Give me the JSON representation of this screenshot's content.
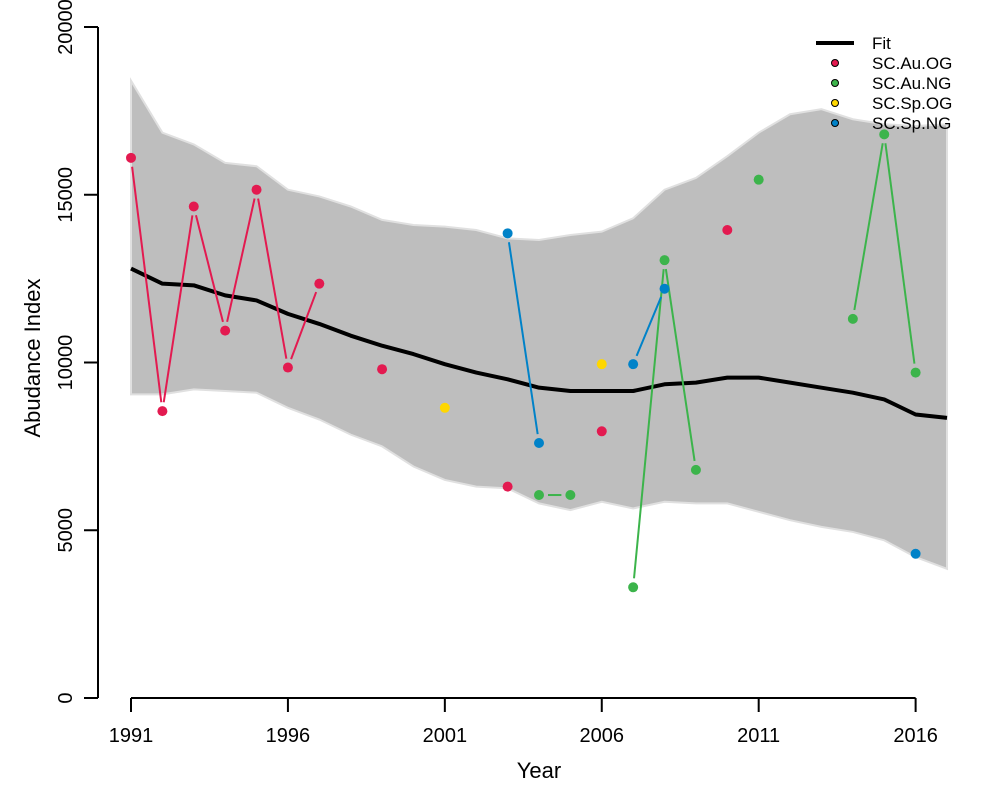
{
  "chart_data": {
    "type": "line",
    "title": "",
    "xlabel": "Year",
    "ylabel": "Abudance Index",
    "xlim": [
      1991,
      2017
    ],
    "ylim": [
      0,
      20000
    ],
    "x_ticks": [
      1991,
      1996,
      2001,
      2006,
      2011,
      2016
    ],
    "x_tick_labels": [
      "1991",
      "1996",
      "2001",
      "2006",
      "2011",
      "2016"
    ],
    "y_ticks": [
      0,
      5000,
      10000,
      15000,
      20000
    ],
    "y_tick_labels": [
      "0",
      "5000",
      "10000",
      "15000",
      "20000"
    ],
    "grid": false,
    "legend_position": "top-right",
    "fit": {
      "name": "Fit",
      "color": "#000000",
      "x": [
        1991,
        1992,
        1993,
        1994,
        1995,
        1996,
        1997,
        1998,
        1999,
        2000,
        2001,
        2002,
        2003,
        2004,
        2005,
        2006,
        2007,
        2008,
        2009,
        2010,
        2011,
        2012,
        2013,
        2014,
        2015,
        2016,
        2017
      ],
      "y": [
        12800,
        12350,
        12300,
        12000,
        11850,
        11450,
        11150,
        10800,
        10500,
        10250,
        9950,
        9700,
        9500,
        9250,
        9150,
        9150,
        9150,
        9350,
        9400,
        9550,
        9550,
        9400,
        9250,
        9100,
        8900,
        8450,
        8350
      ]
    },
    "band": {
      "color": "#bebebe",
      "edge_color": "#e0e0e0",
      "upper": [
        18400,
        16850,
        16500,
        15950,
        15850,
        15150,
        14950,
        14650,
        14250,
        14100,
        14050,
        13950,
        13700,
        13650,
        13800,
        13900,
        14300,
        15150,
        15500,
        16150,
        16850,
        17400,
        17550,
        17250,
        17100,
        17050,
        17100
      ],
      "lower": [
        9050,
        9050,
        9200,
        9150,
        9100,
        8650,
        8300,
        7850,
        7500,
        6900,
        6500,
        6300,
        6250,
        5800,
        5600,
        5850,
        5650,
        5850,
        5800,
        5800,
        5550,
        5300,
        5100,
        4950,
        4700,
        4200,
        3850
      ]
    },
    "series": [
      {
        "name": "SC.Au.OG",
        "color": "#e31a50",
        "x": [
          1991,
          1992,
          1993,
          1994,
          1995,
          1996,
          1997,
          1999,
          2003,
          2006,
          2010
        ],
        "y": [
          16100,
          8550,
          14650,
          10950,
          15150,
          9850,
          12350,
          9800,
          6300,
          7950,
          13950
        ],
        "segments": [
          [
            1991,
            1992
          ],
          [
            1992,
            1993
          ],
          [
            1993,
            1994
          ],
          [
            1994,
            1995
          ],
          [
            1995,
            1996
          ],
          [
            1996,
            1997
          ]
        ]
      },
      {
        "name": "SC.Au.NG",
        "color": "#3cb44b",
        "x": [
          2004,
          2005,
          2007,
          2008,
          2009,
          2011,
          2014,
          2015,
          2016
        ],
        "y": [
          6050,
          6050,
          3300,
          13050,
          6800,
          15450,
          11300,
          16800,
          9700
        ],
        "segments": [
          [
            2004,
            2005
          ],
          [
            2007,
            2008
          ],
          [
            2008,
            2009
          ],
          [
            2014,
            2015
          ],
          [
            2015,
            2016
          ]
        ]
      },
      {
        "name": "SC.Sp.OG",
        "color": "#ffd700",
        "x": [
          2001,
          2006
        ],
        "y": [
          8650,
          9950
        ],
        "segments": []
      },
      {
        "name": "SC.Sp.NG",
        "color": "#0082c8",
        "x": [
          2003,
          2004,
          2007,
          2008,
          2016
        ],
        "y": [
          13850,
          7600,
          9950,
          12200,
          4300
        ],
        "segments": [
          [
            2003,
            2004
          ],
          [
            2007,
            2008
          ]
        ]
      }
    ]
  }
}
